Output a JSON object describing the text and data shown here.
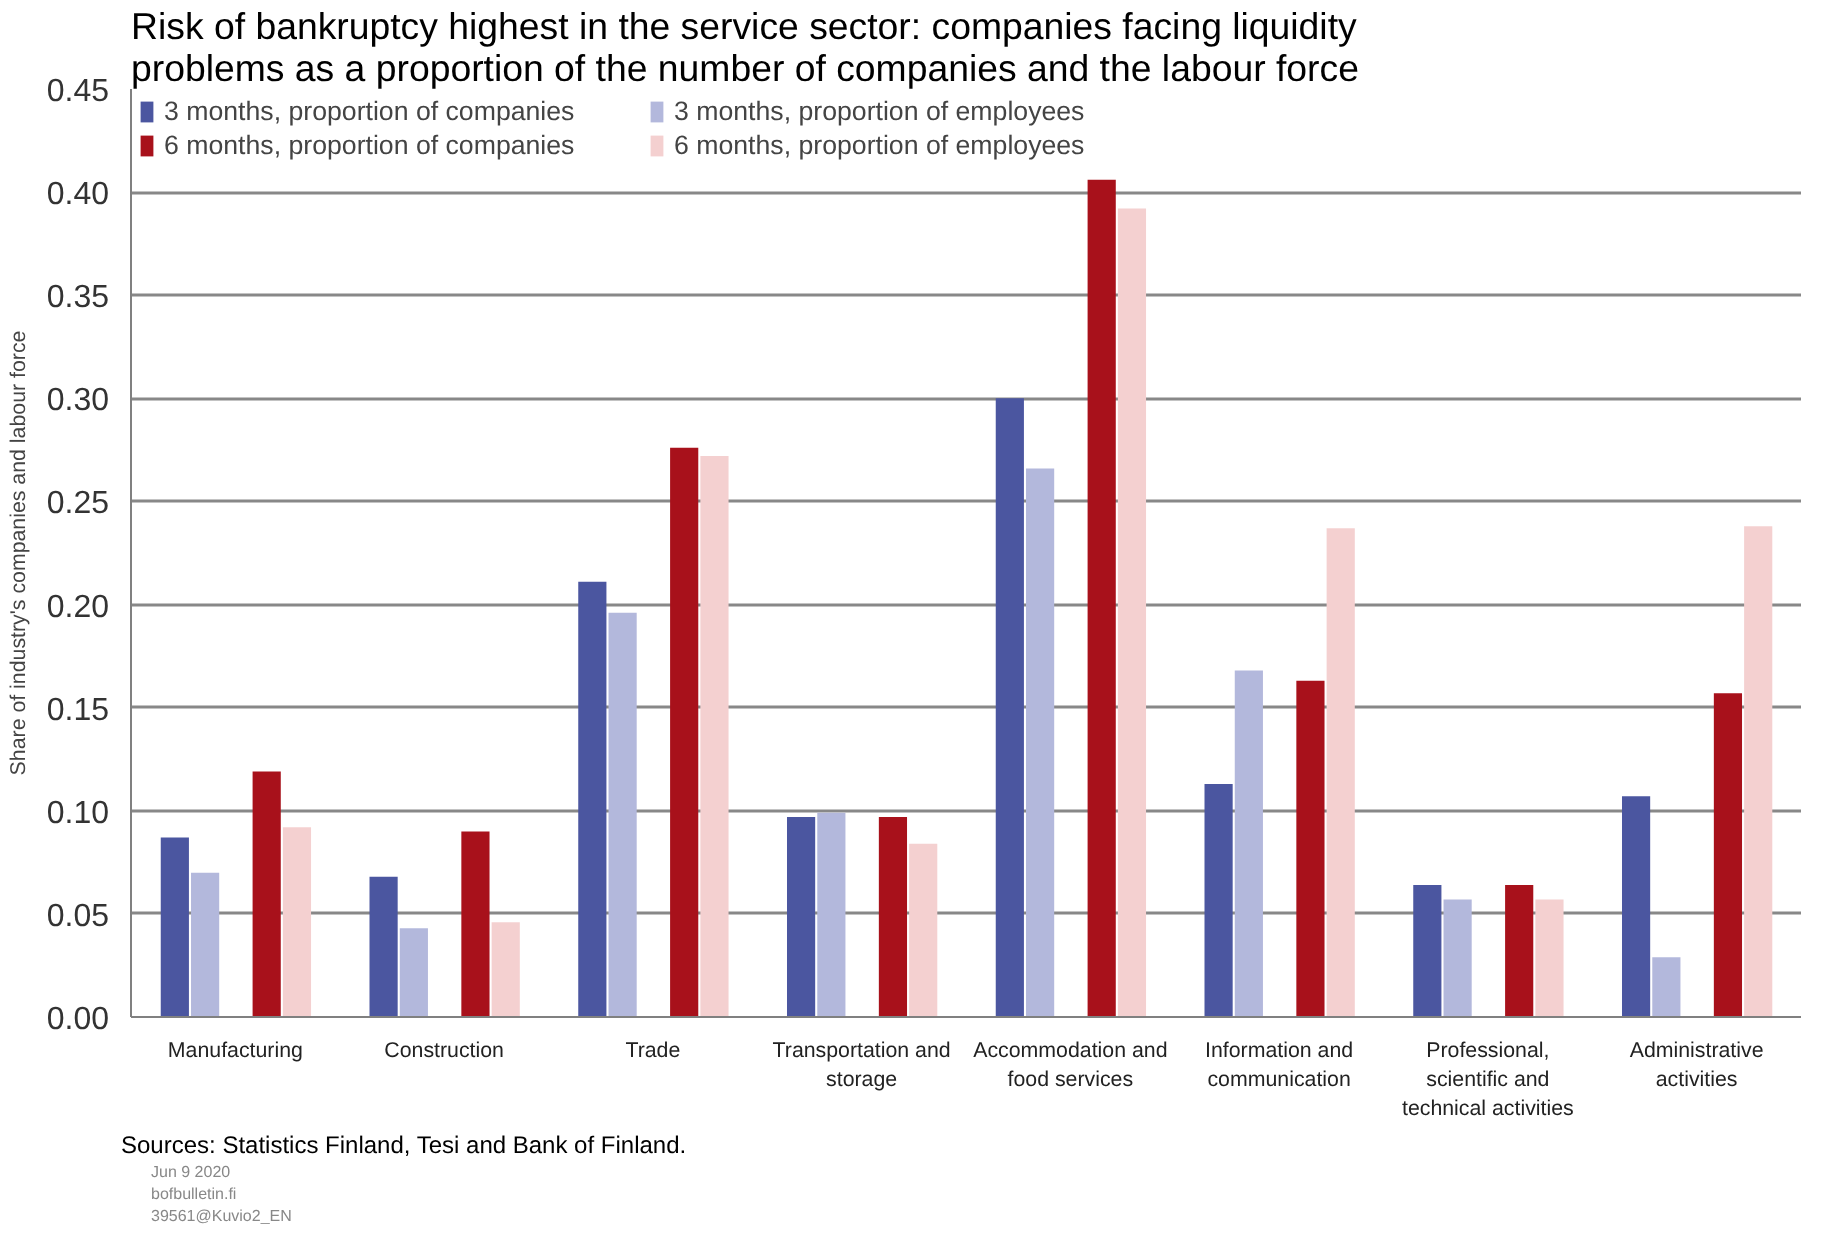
{
  "chart_data": {
    "type": "bar",
    "title": "Risk of bankruptcy highest in the service sector: companies facing liquidity problems as a proportion of the number of companies and the labour force",
    "ylabel": "Share of industry's companies and labour force",
    "categories": [
      "Manufacturing",
      "Construction",
      "Trade",
      "Transportation and storage",
      "Accommodation and food services",
      "Information and communication",
      "Professional, scientific and technical activities",
      "Administrative activities"
    ],
    "series": [
      {
        "name": "3 months, proportion of companies",
        "color": "#4b56a0",
        "values": [
          0.087,
          0.068,
          0.211,
          0.097,
          0.3,
          0.113,
          0.064,
          0.107
        ]
      },
      {
        "name": "3 months, proportion of employees",
        "color": "#b3b8dc",
        "values": [
          0.07,
          0.043,
          0.196,
          0.099,
          0.266,
          0.168,
          0.057,
          0.029
        ]
      },
      {
        "name": "6 months, proportion of companies",
        "color": "#a8111b",
        "values": [
          0.119,
          0.09,
          0.276,
          0.097,
          0.406,
          0.163,
          0.064,
          0.157
        ]
      },
      {
        "name": "6 months, proportion of employees",
        "color": "#f4d0d0",
        "values": [
          0.092,
          0.046,
          0.272,
          0.084,
          0.392,
          0.237,
          0.057,
          0.238
        ]
      }
    ],
    "ylim": [
      0,
      0.45
    ],
    "yticks": [
      {
        "value": 0,
        "label": "0.00"
      },
      {
        "value": 0.05,
        "label": "0.05"
      },
      {
        "value": 0.1,
        "label": "0.10"
      },
      {
        "value": 0.15,
        "label": "0.15"
      },
      {
        "value": 0.2,
        "label": "0.20"
      },
      {
        "value": 0.25,
        "label": "0.25"
      },
      {
        "value": 0.3,
        "label": "0.30"
      },
      {
        "value": 0.35,
        "label": "0.35"
      },
      {
        "value": 0.4,
        "label": "0.40"
      },
      {
        "value": 0.45,
        "label": "0.45"
      }
    ],
    "grid": "y",
    "legend": "top",
    "annotations": [
      "Sources: Statistics Finland, Tesi and Bank of Finland.",
      "Jun 9 2020",
      "bofbulletin.fi",
      "39561@Kuvio2_EN"
    ]
  }
}
